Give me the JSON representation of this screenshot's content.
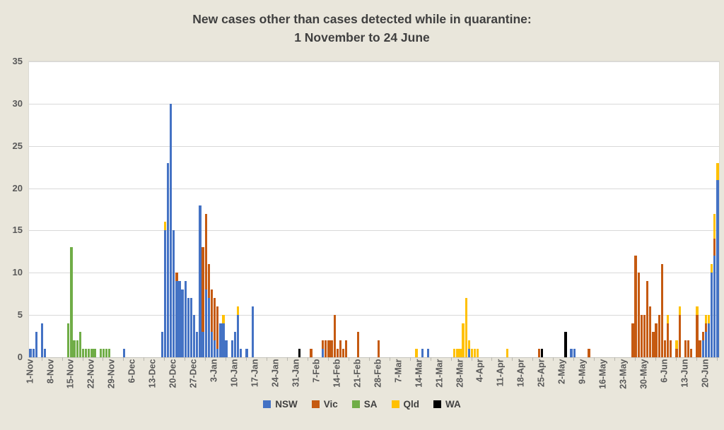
{
  "title": {
    "line1": "New cases other than cases detected while in quarantine:",
    "line2": "1 November to 24 June"
  },
  "legend": [
    {
      "label": "NSW",
      "color": "#4472C4"
    },
    {
      "label": "Vic",
      "color": "#C55A11"
    },
    {
      "label": "SA",
      "color": "#70AD47"
    },
    {
      "label": "Qld",
      "color": "#FFC000"
    },
    {
      "label": "WA",
      "color": "#000000"
    }
  ],
  "axes": {
    "y_ticks": [
      0,
      5,
      10,
      15,
      20,
      25,
      30,
      35
    ],
    "y_max": 35,
    "x_tick_labels": [
      "1-Nov",
      "8-Nov",
      "15-Nov",
      "22-Nov",
      "29-Nov",
      "6-Dec",
      "13-Dec",
      "20-Dec",
      "27-Dec",
      "3-Jan",
      "10-Jan",
      "17-Jan",
      "24-Jan",
      "31-Jan",
      "7-Feb",
      "14-Feb",
      "21-Feb",
      "28-Feb",
      "7-Mar",
      "14-Mar",
      "21-Mar",
      "28-Mar",
      "4-Apr",
      "11-Apr",
      "18-Apr",
      "25-Apr",
      "2-May",
      "9-May",
      "16-May",
      "23-May",
      "30-May",
      "6-Jun",
      "13-Jun",
      "20-Jun"
    ],
    "x_tick_interval_days": 7
  },
  "chart_data": {
    "type": "bar",
    "stacked": true,
    "title": "New cases other than cases detected while in quarantine: 1 November to 24 June",
    "xlabel": "",
    "ylabel": "",
    "ylim": [
      0,
      35
    ],
    "grid": "horizontal",
    "legend_position": "bottom",
    "x_start": "1-Nov",
    "x_end": "24-Jun",
    "total_days": 236,
    "series_names": [
      "NSW",
      "Vic",
      "SA",
      "Qld",
      "WA"
    ],
    "colors": {
      "NSW": "#4472C4",
      "Vic": "#C55A11",
      "SA": "#70AD47",
      "Qld": "#FFC000",
      "WA": "#000000"
    },
    "days": [
      {
        "i": 0,
        "date": "1-Nov",
        "NSW": 1
      },
      {
        "i": 1,
        "date": "2-Nov",
        "NSW": 1
      },
      {
        "i": 2,
        "date": "3-Nov",
        "NSW": 3
      },
      {
        "i": 4,
        "date": "5-Nov",
        "NSW": 4
      },
      {
        "i": 5,
        "date": "6-Nov",
        "NSW": 1
      },
      {
        "i": 13,
        "date": "14-Nov",
        "SA": 4
      },
      {
        "i": 14,
        "date": "15-Nov",
        "SA": 13
      },
      {
        "i": 15,
        "date": "16-Nov",
        "SA": 2
      },
      {
        "i": 16,
        "date": "17-Nov",
        "SA": 2
      },
      {
        "i": 17,
        "date": "18-Nov",
        "SA": 3
      },
      {
        "i": 18,
        "date": "19-Nov",
        "SA": 1
      },
      {
        "i": 19,
        "date": "20-Nov",
        "SA": 1
      },
      {
        "i": 20,
        "date": "21-Nov",
        "SA": 1
      },
      {
        "i": 21,
        "date": "22-Nov",
        "SA": 1
      },
      {
        "i": 22,
        "date": "23-Nov",
        "SA": 1
      },
      {
        "i": 24,
        "date": "25-Nov",
        "SA": 1
      },
      {
        "i": 25,
        "date": "26-Nov",
        "SA": 1
      },
      {
        "i": 26,
        "date": "27-Nov",
        "SA": 1
      },
      {
        "i": 27,
        "date": "28-Nov",
        "SA": 1
      },
      {
        "i": 32,
        "date": "3-Dec",
        "NSW": 1
      },
      {
        "i": 45,
        "date": "16-Dec",
        "NSW": 3
      },
      {
        "i": 46,
        "date": "17-Dec",
        "NSW": 15,
        "Qld": 1
      },
      {
        "i": 47,
        "date": "18-Dec",
        "NSW": 23
      },
      {
        "i": 48,
        "date": "19-Dec",
        "NSW": 30
      },
      {
        "i": 49,
        "date": "20-Dec",
        "NSW": 15
      },
      {
        "i": 50,
        "date": "21-Dec",
        "NSW": 9,
        "Vic": 1
      },
      {
        "i": 51,
        "date": "22-Dec",
        "NSW": 9
      },
      {
        "i": 52,
        "date": "23-Dec",
        "NSW": 8
      },
      {
        "i": 53,
        "date": "24-Dec",
        "NSW": 9
      },
      {
        "i": 54,
        "date": "25-Dec",
        "NSW": 7
      },
      {
        "i": 55,
        "date": "26-Dec",
        "NSW": 7
      },
      {
        "i": 56,
        "date": "27-Dec",
        "NSW": 5
      },
      {
        "i": 57,
        "date": "28-Dec",
        "NSW": 3
      },
      {
        "i": 58,
        "date": "29-Dec",
        "NSW": 18
      },
      {
        "i": 59,
        "date": "30-Dec",
        "NSW": 3,
        "Vic": 10
      },
      {
        "i": 60,
        "date": "31-Dec",
        "NSW": 8,
        "Vic": 9
      },
      {
        "i": 61,
        "date": "1-Jan",
        "NSW": 7,
        "Vic": 4
      },
      {
        "i": 62,
        "date": "2-Jan",
        "NSW": 3,
        "Vic": 5
      },
      {
        "i": 63,
        "date": "3-Jan",
        "NSW": 2,
        "Vic": 5
      },
      {
        "i": 64,
        "date": "4-Jan",
        "NSW": 1,
        "Vic": 5
      },
      {
        "i": 65,
        "date": "5-Jan",
        "NSW": 4
      },
      {
        "i": 66,
        "date": "6-Jan",
        "NSW": 4,
        "Qld": 1
      },
      {
        "i": 67,
        "date": "7-Jan",
        "NSW": 2
      },
      {
        "i": 69,
        "date": "9-Jan",
        "NSW": 2
      },
      {
        "i": 70,
        "date": "10-Jan",
        "NSW": 3
      },
      {
        "i": 71,
        "date": "11-Jan",
        "NSW": 5,
        "Qld": 1
      },
      {
        "i": 72,
        "date": "12-Jan",
        "NSW": 1
      },
      {
        "i": 74,
        "date": "14-Jan",
        "NSW": 1
      },
      {
        "i": 76,
        "date": "16-Jan",
        "NSW": 6
      },
      {
        "i": 92,
        "date": "1-Feb",
        "WA": 1
      },
      {
        "i": 96,
        "date": "5-Feb",
        "Vic": 1
      },
      {
        "i": 100,
        "date": "9-Feb",
        "NSW": 1,
        "Vic": 1
      },
      {
        "i": 101,
        "date": "10-Feb",
        "Vic": 2
      },
      {
        "i": 102,
        "date": "11-Feb",
        "Vic": 2
      },
      {
        "i": 103,
        "date": "12-Feb",
        "Vic": 2
      },
      {
        "i": 104,
        "date": "13-Feb",
        "Vic": 5
      },
      {
        "i": 105,
        "date": "14-Feb",
        "Vic": 1
      },
      {
        "i": 106,
        "date": "15-Feb",
        "Vic": 2
      },
      {
        "i": 107,
        "date": "16-Feb",
        "Vic": 1
      },
      {
        "i": 108,
        "date": "17-Feb",
        "Vic": 2
      },
      {
        "i": 112,
        "date": "21-Feb",
        "Vic": 3
      },
      {
        "i": 119,
        "date": "28-Feb",
        "Vic": 2
      },
      {
        "i": 132,
        "date": "13-Mar",
        "Qld": 1
      },
      {
        "i": 134,
        "date": "15-Mar",
        "NSW": 1
      },
      {
        "i": 136,
        "date": "17-Mar",
        "NSW": 1
      },
      {
        "i": 145,
        "date": "26-Mar",
        "Qld": 1
      },
      {
        "i": 146,
        "date": "27-Mar",
        "Qld": 1
      },
      {
        "i": 147,
        "date": "28-Mar",
        "Qld": 1
      },
      {
        "i": 148,
        "date": "29-Mar",
        "Qld": 4
      },
      {
        "i": 149,
        "date": "30-Mar",
        "Qld": 7
      },
      {
        "i": 150,
        "date": "31-Mar",
        "NSW": 1,
        "Qld": 1
      },
      {
        "i": 151,
        "date": "1-Apr",
        "Qld": 1
      },
      {
        "i": 152,
        "date": "2-Apr",
        "Qld": 1
      },
      {
        "i": 153,
        "date": "3-Apr",
        "Qld": 1
      },
      {
        "i": 163,
        "date": "13-Apr",
        "Qld": 1
      },
      {
        "i": 174,
        "date": "24-Apr",
        "Vic": 1
      },
      {
        "i": 175,
        "date": "25-Apr",
        "WA": 1
      },
      {
        "i": 183,
        "date": "3-May",
        "WA": 3
      },
      {
        "i": 185,
        "date": "5-May",
        "NSW": 1
      },
      {
        "i": 186,
        "date": "6-May",
        "NSW": 1
      },
      {
        "i": 191,
        "date": "11-May",
        "Vic": 1
      },
      {
        "i": 206,
        "date": "26-May",
        "Vic": 4
      },
      {
        "i": 207,
        "date": "27-May",
        "Vic": 12
      },
      {
        "i": 208,
        "date": "28-May",
        "Vic": 10
      },
      {
        "i": 209,
        "date": "29-May",
        "Vic": 5
      },
      {
        "i": 210,
        "date": "30-May",
        "Vic": 5
      },
      {
        "i": 211,
        "date": "31-May",
        "Vic": 9
      },
      {
        "i": 212,
        "date": "1-Jun",
        "Vic": 6
      },
      {
        "i": 213,
        "date": "2-Jun",
        "Vic": 3
      },
      {
        "i": 214,
        "date": "3-Jun",
        "Vic": 4
      },
      {
        "i": 215,
        "date": "4-Jun",
        "Vic": 5
      },
      {
        "i": 216,
        "date": "5-Jun",
        "Vic": 11
      },
      {
        "i": 217,
        "date": "6-Jun",
        "Vic": 2
      },
      {
        "i": 218,
        "date": "7-Jun",
        "Vic": 4,
        "Qld": 1
      },
      {
        "i": 219,
        "date": "8-Jun",
        "Vic": 2
      },
      {
        "i": 221,
        "date": "10-Jun",
        "Vic": 1,
        "Qld": 1
      },
      {
        "i": 222,
        "date": "11-Jun",
        "Vic": 5,
        "Qld": 1
      },
      {
        "i": 224,
        "date": "13-Jun",
        "Vic": 2
      },
      {
        "i": 225,
        "date": "14-Jun",
        "Vic": 2
      },
      {
        "i": 226,
        "date": "15-Jun",
        "Vic": 1
      },
      {
        "i": 228,
        "date": "17-Jun",
        "Vic": 5,
        "Qld": 1
      },
      {
        "i": 229,
        "date": "18-Jun",
        "Vic": 2
      },
      {
        "i": 230,
        "date": "19-Jun",
        "NSW": 2,
        "Vic": 1
      },
      {
        "i": 231,
        "date": "20-Jun",
        "NSW": 3,
        "Vic": 1,
        "Qld": 1
      },
      {
        "i": 232,
        "date": "21-Jun",
        "NSW": 4,
        "Qld": 1
      },
      {
        "i": 233,
        "date": "22-Jun",
        "NSW": 10,
        "Qld": 1
      },
      {
        "i": 234,
        "date": "23-Jun",
        "NSW": 12,
        "Vic": 2,
        "Qld": 3
      },
      {
        "i": 235,
        "date": "24-Jun",
        "NSW": 21,
        "Qld": 2
      }
    ]
  }
}
